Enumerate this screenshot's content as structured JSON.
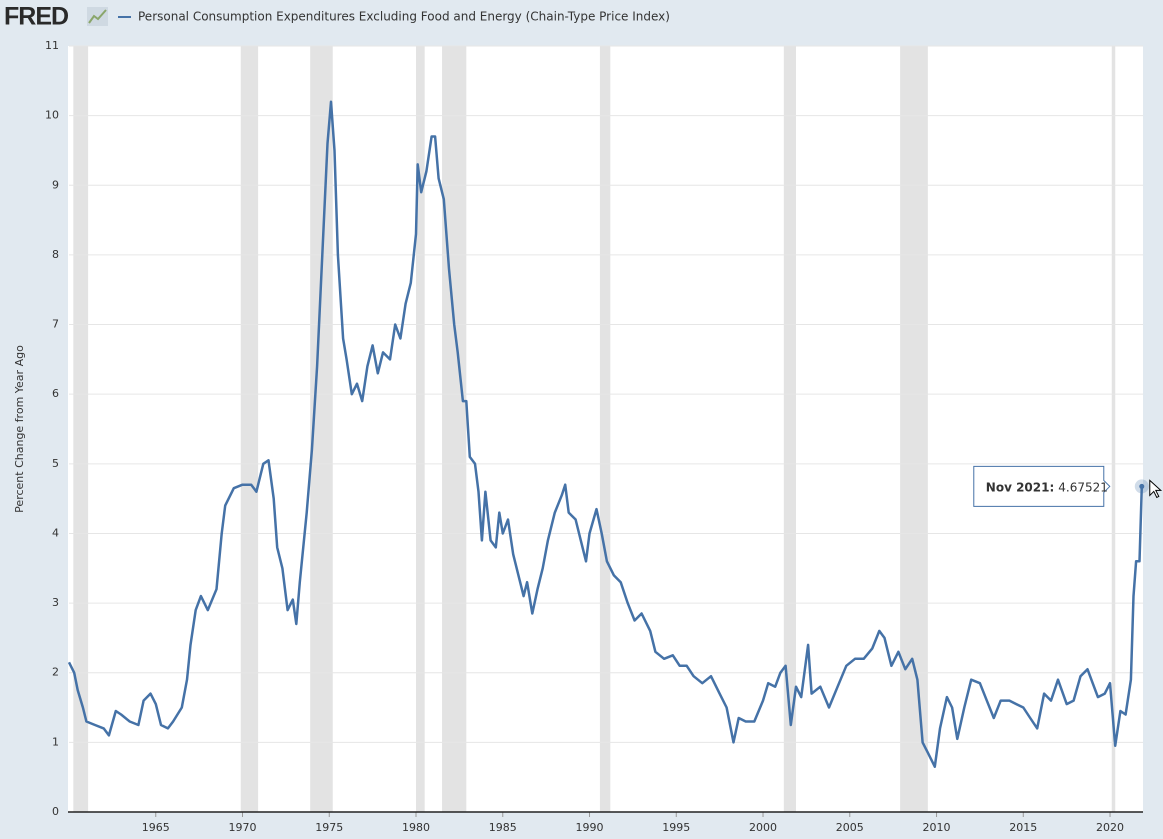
{
  "header": {
    "logo": "FRED"
  },
  "chart_data": {
    "type": "line",
    "ylabel": "Percent Change from Year Ago",
    "xlim": [
      1960.0,
      2021.9
    ],
    "ylim": [
      0,
      11
    ],
    "xticks": [
      1965,
      1970,
      1975,
      1980,
      1985,
      1990,
      1995,
      2000,
      2005,
      2010,
      2015,
      2020
    ],
    "yticks": [
      0,
      1,
      2,
      3,
      4,
      5,
      6,
      7,
      8,
      9,
      10,
      11
    ],
    "grid": true,
    "recessions": [
      [
        1960.25,
        1961.1
      ],
      [
        1969.9,
        1970.9
      ],
      [
        1973.9,
        1975.2
      ],
      [
        1980.0,
        1980.5
      ],
      [
        1981.5,
        1982.9
      ],
      [
        1990.6,
        1991.2
      ],
      [
        2001.2,
        2001.9
      ],
      [
        2007.9,
        2009.5
      ],
      [
        2020.1,
        2020.3
      ]
    ],
    "tooltip": {
      "label": "Nov 2021:"
    },
    "x": [
      1960.0,
      1960.3,
      1960.5,
      1960.8,
      1961.0,
      1961.5,
      1962.0,
      1962.3,
      1962.7,
      1963.0,
      1963.5,
      1964.0,
      1964.3,
      1964.7,
      1965.0,
      1965.3,
      1965.7,
      1966.0,
      1966.5,
      1966.8,
      1967.0,
      1967.3,
      1967.6,
      1968.0,
      1968.5,
      1968.8,
      1969.0,
      1969.5,
      1970.0,
      1970.5,
      1970.8,
      1971.2,
      1971.5,
      1971.8,
      1972.0,
      1972.3,
      1972.6,
      1972.9,
      1973.1,
      1973.3,
      1973.7,
      1974.0,
      1974.3,
      1974.6,
      1974.9,
      1975.1,
      1975.3,
      1975.5,
      1975.8,
      1976.0,
      1976.3,
      1976.6,
      1976.9,
      1977.2,
      1977.5,
      1977.8,
      1978.1,
      1978.5,
      1978.8,
      1979.1,
      1979.4,
      1979.7,
      1980.0,
      1980.1,
      1980.3,
      1980.6,
      1980.9,
      1981.1,
      1981.3,
      1981.6,
      1981.9,
      1982.2,
      1982.4,
      1982.7,
      1982.9,
      1983.1,
      1983.4,
      1983.6,
      1983.8,
      1984.0,
      1984.3,
      1984.6,
      1984.8,
      1985.0,
      1985.3,
      1985.6,
      1985.9,
      1986.2,
      1986.4,
      1986.7,
      1987.0,
      1987.3,
      1987.6,
      1988.0,
      1988.4,
      1988.6,
      1988.8,
      1989.2,
      1989.5,
      1989.8,
      1990.0,
      1990.4,
      1990.7,
      1991.0,
      1991.4,
      1991.8,
      1992.2,
      1992.6,
      1993.0,
      1993.5,
      1993.8,
      1994.3,
      1994.8,
      1995.2,
      1995.6,
      1996.0,
      1996.5,
      1997.0,
      1997.5,
      1997.9,
      1998.3,
      1998.6,
      1999.0,
      1999.5,
      2000.0,
      2000.3,
      2000.7,
      2001.0,
      2001.3,
      2001.6,
      2001.9,
      2002.2,
      2002.6,
      2002.8,
      2003.3,
      2003.8,
      2004.3,
      2004.8,
      2005.3,
      2005.8,
      2006.3,
      2006.7,
      2007.0,
      2007.4,
      2007.8,
      2008.2,
      2008.6,
      2008.9,
      2009.2,
      2009.5,
      2009.9,
      2010.2,
      2010.6,
      2010.9,
      2011.2,
      2011.6,
      2012.0,
      2012.5,
      2012.9,
      2013.3,
      2013.7,
      2014.2,
      2014.6,
      2015.0,
      2015.4,
      2015.8,
      2016.2,
      2016.6,
      2017.0,
      2017.5,
      2017.9,
      2018.3,
      2018.7,
      2019.0,
      2019.3,
      2019.7,
      2020.0,
      2020.3,
      2020.6,
      2020.9,
      2021.2,
      2021.35,
      2021.5,
      2021.7,
      2021.83
    ],
    "series": [
      {
        "name": "Personal Consumption Expenditures Excluding Food and Energy (Chain-Type Price Index)",
        "color": "#4572a7",
        "values": [
          2.15,
          2.0,
          1.75,
          1.5,
          1.3,
          1.25,
          1.2,
          1.1,
          1.45,
          1.4,
          1.3,
          1.25,
          1.6,
          1.7,
          1.55,
          1.25,
          1.2,
          1.3,
          1.5,
          1.9,
          2.4,
          2.9,
          3.1,
          2.9,
          3.2,
          4.0,
          4.4,
          4.65,
          4.7,
          4.7,
          4.6,
          5.0,
          5.05,
          4.5,
          3.8,
          3.5,
          2.9,
          3.05,
          2.7,
          3.3,
          4.3,
          5.2,
          6.4,
          8.0,
          9.6,
          10.2,
          9.5,
          8.0,
          6.8,
          6.5,
          6.0,
          6.15,
          5.9,
          6.4,
          6.7,
          6.3,
          6.6,
          6.5,
          7.0,
          6.8,
          7.3,
          7.6,
          8.3,
          9.3,
          8.9,
          9.2,
          9.7,
          9.7,
          9.1,
          8.8,
          7.8,
          7.0,
          6.6,
          5.9,
          5.9,
          5.1,
          5.0,
          4.6,
          3.9,
          4.6,
          3.9,
          3.8,
          4.3,
          4.0,
          4.2,
          3.7,
          3.4,
          3.1,
          3.3,
          2.85,
          3.2,
          3.5,
          3.9,
          4.3,
          4.55,
          4.7,
          4.3,
          4.2,
          3.9,
          3.6,
          4.0,
          4.35,
          4.0,
          3.6,
          3.4,
          3.3,
          3.0,
          2.75,
          2.85,
          2.6,
          2.3,
          2.2,
          2.25,
          2.1,
          2.1,
          1.95,
          1.85,
          1.95,
          1.7,
          1.5,
          1.0,
          1.35,
          1.3,
          1.3,
          1.6,
          1.85,
          1.8,
          2.0,
          2.1,
          1.25,
          1.8,
          1.65,
          2.4,
          1.7,
          1.8,
          1.5,
          1.8,
          2.1,
          2.2,
          2.2,
          2.35,
          2.6,
          2.5,
          2.1,
          2.3,
          2.05,
          2.2,
          1.9,
          1.0,
          0.85,
          0.65,
          1.2,
          1.65,
          1.5,
          1.05,
          1.5,
          1.9,
          1.85,
          1.6,
          1.35,
          1.6,
          1.6,
          1.55,
          1.5,
          1.35,
          1.2,
          1.7,
          1.6,
          1.9,
          1.55,
          1.6,
          1.95,
          2.05,
          1.85,
          1.65,
          1.7,
          1.85,
          0.95,
          1.45,
          1.4,
          1.9,
          3.1,
          3.6,
          3.6,
          4.67521
        ]
      }
    ]
  }
}
